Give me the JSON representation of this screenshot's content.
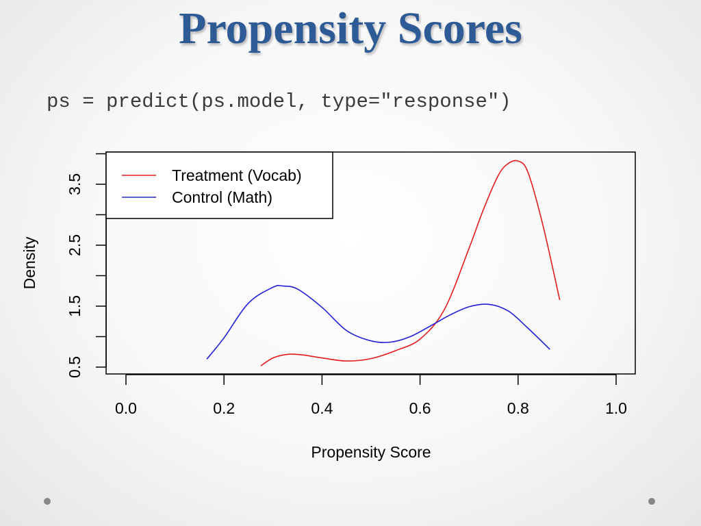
{
  "slide": {
    "title": "Propensity Scores",
    "code": "ps = predict(ps.model, type=\"response\")"
  },
  "chart_data": {
    "type": "line",
    "title": "",
    "xlabel": "Propensity Score",
    "ylabel": "Density",
    "xlim": [
      0.0,
      1.0
    ],
    "ylim": [
      0.5,
      3.85
    ],
    "xticks": [
      "0.0",
      "0.2",
      "0.4",
      "0.6",
      "0.8",
      "1.0"
    ],
    "yticks": [
      "0.5",
      "1.5",
      "2.5",
      "3.5"
    ],
    "grid": false,
    "legend_position": "top-left",
    "series": [
      {
        "name": "Treatment (Vocab)",
        "color": "#e41a1c",
        "x": [
          0.275,
          0.3,
          0.33,
          0.36,
          0.4,
          0.45,
          0.5,
          0.55,
          0.6,
          0.65,
          0.7,
          0.73,
          0.76,
          0.78,
          0.8,
          0.82,
          0.85,
          0.885
        ],
        "y": [
          0.52,
          0.65,
          0.71,
          0.7,
          0.65,
          0.6,
          0.64,
          0.77,
          0.96,
          1.45,
          2.45,
          3.1,
          3.65,
          3.84,
          3.88,
          3.7,
          2.85,
          1.6
        ]
      },
      {
        "name": "Control (Math)",
        "color": "#1f1fd6",
        "x": [
          0.165,
          0.2,
          0.25,
          0.3,
          0.32,
          0.35,
          0.4,
          0.45,
          0.5,
          0.54,
          0.58,
          0.62,
          0.66,
          0.7,
          0.74,
          0.78,
          0.82,
          0.865
        ],
        "y": [
          0.63,
          0.98,
          1.55,
          1.81,
          1.83,
          1.78,
          1.48,
          1.1,
          0.93,
          0.91,
          1.0,
          1.17,
          1.35,
          1.49,
          1.53,
          1.42,
          1.14,
          0.79
        ]
      }
    ]
  },
  "decor": {
    "dot_color": "#888888"
  }
}
